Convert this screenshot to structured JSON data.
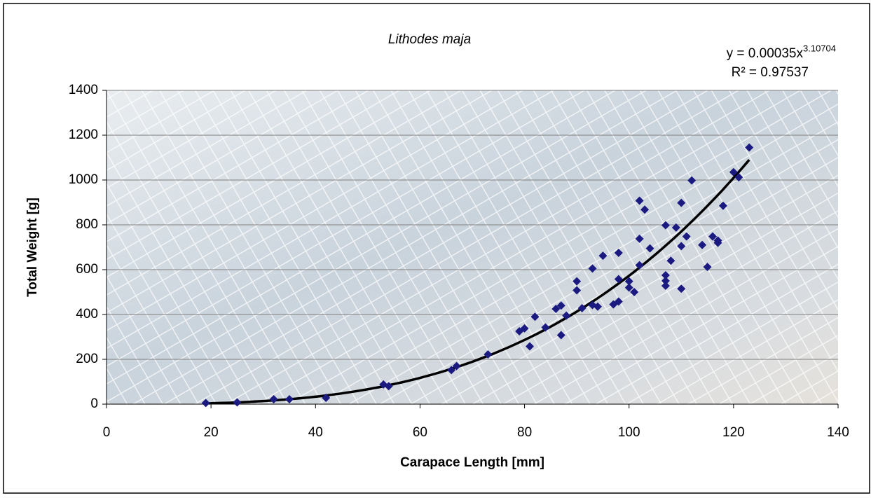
{
  "chart_data": {
    "type": "scatter",
    "title": "Lithodes maja",
    "xlabel": "Carapace Length [mm]",
    "ylabel": "Total Weight [g]",
    "xlim": [
      0,
      140
    ],
    "xticks": [
      0,
      20,
      40,
      60,
      80,
      100,
      120,
      140
    ],
    "ylim": [
      0,
      1400
    ],
    "yticks": [
      0,
      200,
      400,
      600,
      800,
      1000,
      1200,
      1400
    ],
    "grid": true,
    "series": [
      {
        "color": "#1a1a80",
        "x": [
          19,
          25,
          32,
          35,
          42,
          53,
          54,
          66,
          67,
          73,
          79,
          80,
          81,
          82,
          84,
          86,
          87,
          87,
          88,
          90,
          90,
          91,
          93,
          93,
          94,
          95,
          97,
          98,
          98,
          98,
          100,
          100,
          101,
          102,
          102,
          102,
          103,
          104,
          107,
          107,
          107,
          107,
          108,
          109,
          110,
          110,
          110,
          111,
          112,
          114,
          115,
          116,
          117,
          117,
          118,
          120,
          121,
          123
        ],
        "values": [
          5,
          8,
          22,
          22,
          28,
          88,
          80,
          152,
          170,
          222,
          325,
          338,
          258,
          390,
          342,
          425,
          440,
          308,
          395,
          548,
          508,
          428,
          605,
          442,
          435,
          662,
          445,
          675,
          558,
          458,
          548,
          520,
          500,
          908,
          738,
          620,
          868,
          695,
          798,
          575,
          550,
          528,
          640,
          788,
          898,
          705,
          515,
          748,
          998,
          710,
          612,
          748,
          730,
          720,
          885,
          1035,
          1012,
          1145
        ]
      }
    ],
    "trendline": {
      "color": "#000000",
      "coefficient": 0.00035,
      "exponent": 3.10704,
      "label": "y = 0.00035x",
      "exponent_label": "3.10704",
      "r2_label": "R² = 0.97537"
    }
  }
}
